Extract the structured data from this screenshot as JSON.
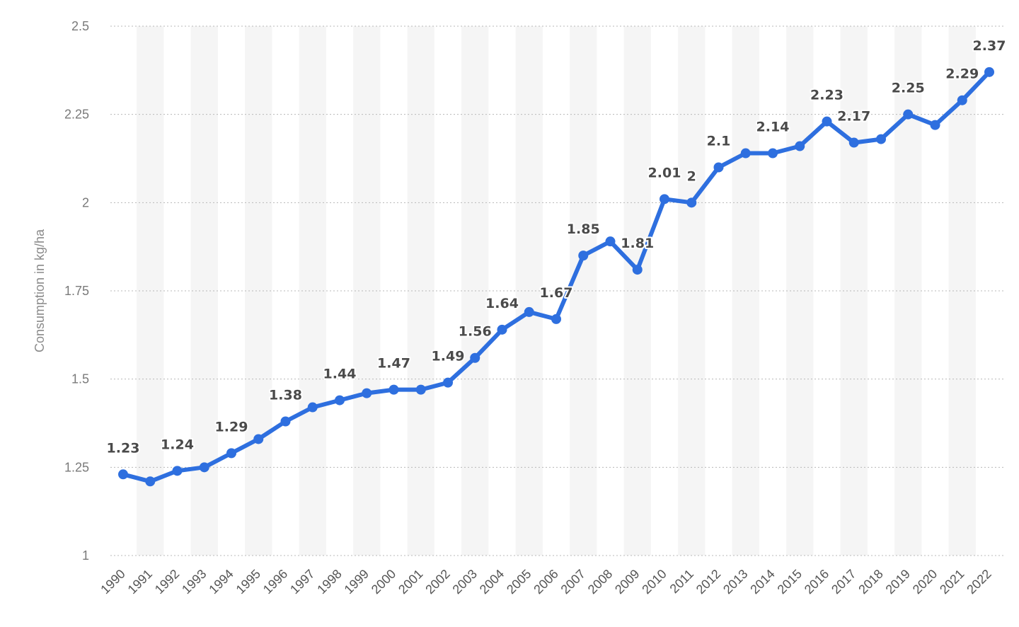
{
  "chart_data": {
    "type": "line",
    "title": "",
    "xlabel": "",
    "ylabel": "Consumption in kg/ha",
    "ylim": [
      1,
      2.5
    ],
    "yticks": [
      1,
      1.25,
      1.5,
      1.75,
      2,
      2.25,
      2.5
    ],
    "ytick_labels": [
      "1",
      "1.25",
      "1.5",
      "1.75",
      "2",
      "2.25",
      "2.5"
    ],
    "grid": true,
    "legend": "none",
    "categories": [
      "1990",
      "1991",
      "1992",
      "1993",
      "1994",
      "1995",
      "1996",
      "1997",
      "1998",
      "1999",
      "2000",
      "2001",
      "2002",
      "2003",
      "2004",
      "2005",
      "2006",
      "2007",
      "2008",
      "2009",
      "2010",
      "2011",
      "2012",
      "2013",
      "2014",
      "2015",
      "2016",
      "2017",
      "2018",
      "2019",
      "2020",
      "2021",
      "2022"
    ],
    "series": [
      {
        "color": "#2e6fdf",
        "values": [
          1.23,
          1.21,
          1.24,
          1.25,
          1.29,
          1.33,
          1.38,
          1.42,
          1.44,
          1.46,
          1.47,
          1.47,
          1.49,
          1.56,
          1.64,
          1.69,
          1.67,
          1.85,
          1.89,
          1.81,
          2.01,
          2.0,
          2.1,
          2.14,
          2.14,
          2.16,
          2.23,
          2.17,
          2.18,
          2.25,
          2.22,
          2.29,
          2.37
        ]
      }
    ],
    "data_labels": [
      {
        "index": 0,
        "text": "1.23"
      },
      {
        "index": 2,
        "text": "1.24"
      },
      {
        "index": 4,
        "text": "1.29"
      },
      {
        "index": 6,
        "text": "1.38"
      },
      {
        "index": 8,
        "text": "1.44"
      },
      {
        "index": 10,
        "text": "1.47"
      },
      {
        "index": 12,
        "text": "1.49"
      },
      {
        "index": 13,
        "text": "1.56"
      },
      {
        "index": 14,
        "text": "1.64"
      },
      {
        "index": 16,
        "text": "1.67"
      },
      {
        "index": 17,
        "text": "1.85"
      },
      {
        "index": 19,
        "text": "1.81"
      },
      {
        "index": 20,
        "text": "2.01"
      },
      {
        "index": 21,
        "text": "2"
      },
      {
        "index": 22,
        "text": "2.1"
      },
      {
        "index": 24,
        "text": "2.14"
      },
      {
        "index": 26,
        "text": "2.23"
      },
      {
        "index": 27,
        "text": "2.17"
      },
      {
        "index": 29,
        "text": "2.25"
      },
      {
        "index": 31,
        "text": "2.29"
      },
      {
        "index": 32,
        "text": "2.37"
      }
    ],
    "colors": {
      "line": "#2e6fdf",
      "band": "#f5f5f5",
      "grid": "#b8b8b8"
    }
  }
}
